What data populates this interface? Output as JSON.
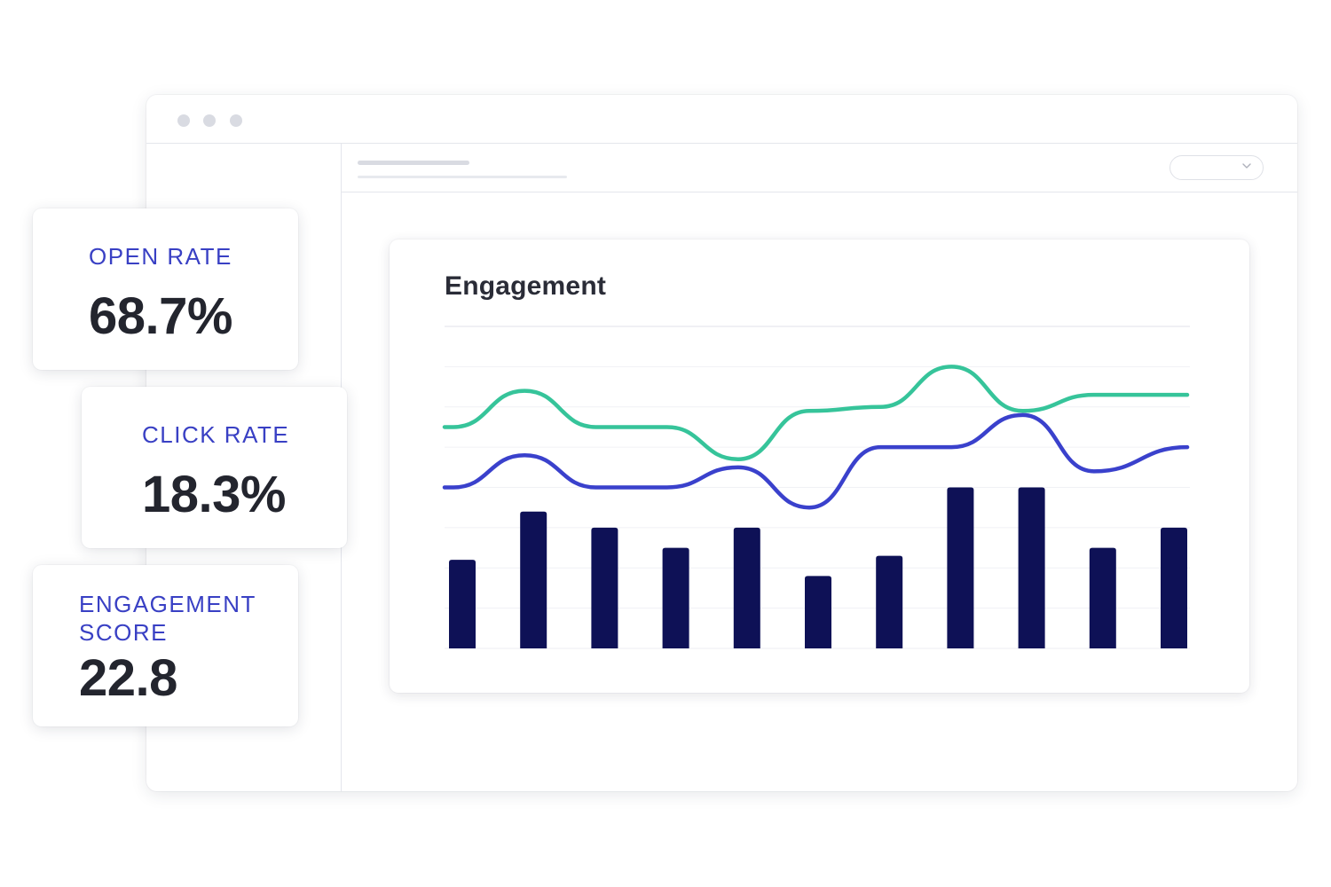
{
  "chart_card": {
    "title": "Engagement"
  },
  "metrics": [
    {
      "label": "OPEN RATE",
      "value": "68.7%"
    },
    {
      "label": "CLICK RATE",
      "value": "18.3%"
    },
    {
      "label": "ENGAGEMENT SCORE",
      "value": "22.8"
    }
  ],
  "colors": {
    "accent_text": "#3940c4",
    "bar": "#0e1156",
    "line_green": "#36c49a",
    "line_blue": "#3a41cc",
    "value_text": "#23252e"
  },
  "chart_data": {
    "type": "bar",
    "title": "Engagement",
    "grid": true,
    "ylim": [
      0,
      8
    ],
    "categories": [
      "",
      "",
      "",
      "",
      "",
      "",
      "",
      "",
      "",
      "",
      ""
    ],
    "series": [
      {
        "type": "bar",
        "color": "#0e1156",
        "values": [
          2.2,
          3.4,
          3.0,
          2.5,
          3.0,
          1.8,
          2.3,
          4.0,
          4.0,
          2.5,
          3.0
        ]
      },
      {
        "type": "line",
        "color": "#3a41cc",
        "values": [
          4.0,
          4.8,
          4.0,
          4.0,
          4.5,
          3.5,
          5.0,
          5.0,
          5.8,
          4.4,
          5.0
        ]
      },
      {
        "type": "line",
        "color": "#36c49a",
        "values": [
          5.5,
          6.4,
          5.5,
          5.5,
          4.7,
          5.9,
          6.0,
          7.0,
          5.9,
          6.3,
          6.3
        ]
      }
    ]
  }
}
